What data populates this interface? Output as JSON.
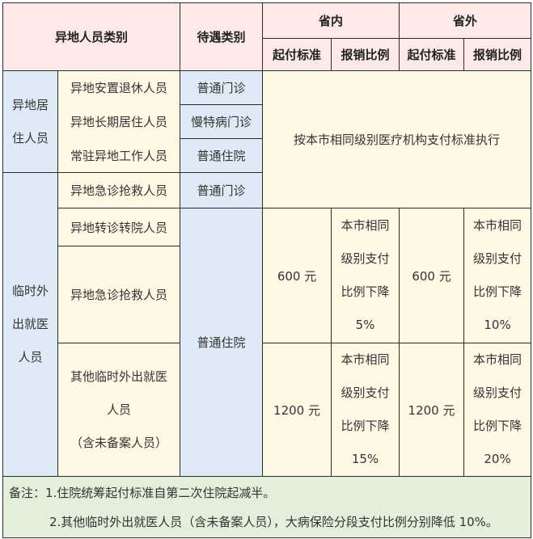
{
  "header": {
    "person_category": "异地人员类别",
    "treatment_category": "待遇类别",
    "in_province": "省内",
    "out_province": "省外",
    "deductible": "起付标准",
    "reimbursement_ratio": "报销比例"
  },
  "groups": {
    "resident": "异地居住人员",
    "resident_lines": [
      "异地居",
      "住人员"
    ],
    "temporary": "临时外出就医人员",
    "temporary_lines": [
      "临时外",
      "出就医",
      "人员"
    ]
  },
  "rows": [
    {
      "person": "异地安置退休人员",
      "treatment": "普通门诊"
    },
    {
      "person": "异地长期居住人员",
      "treatment": "慢特病门诊"
    },
    {
      "person": "常驻异地工作人员",
      "treatment": "普通住院"
    },
    {
      "person": "异地急诊抢救人员",
      "treatment": "普通门诊"
    },
    {
      "person": "异地转诊转院人员",
      "treatment": "普通住院"
    },
    {
      "person": "异地急诊抢救人员"
    },
    {
      "person_lines": [
        "其他临时外出就医",
        "人员",
        "（含未备案人员）"
      ]
    }
  ],
  "same_standard": "按本市相同级别医疗机构支付标准执行",
  "tier1": {
    "in_deductible": "600 元",
    "in_ratio_lines": [
      "本市相同",
      "级别支付",
      "比例下降",
      "5%"
    ],
    "out_deductible": "600 元",
    "out_ratio_lines": [
      "本市相同",
      "级别支付",
      "比例下降",
      "10%"
    ]
  },
  "tier2": {
    "in_deductible": "1200 元",
    "in_ratio_lines": [
      "本市相同",
      "级别支付",
      "比例下降",
      "15%"
    ],
    "out_deductible": "1200 元",
    "out_ratio_lines": [
      "本市相同",
      "级别支付",
      "比例下降",
      "20%"
    ]
  },
  "notes": {
    "line1": "备注：1.住院统筹起付标准自第二次住院起减半。",
    "line2": "2.其他临时外出就医人员（含未备案人员），大病保险分段支付比例分别降低 10%。"
  },
  "colors": {
    "header": "#fde9e7",
    "blue": "#deebf7",
    "cream": "#fff8e5",
    "green": "#e2efda"
  }
}
